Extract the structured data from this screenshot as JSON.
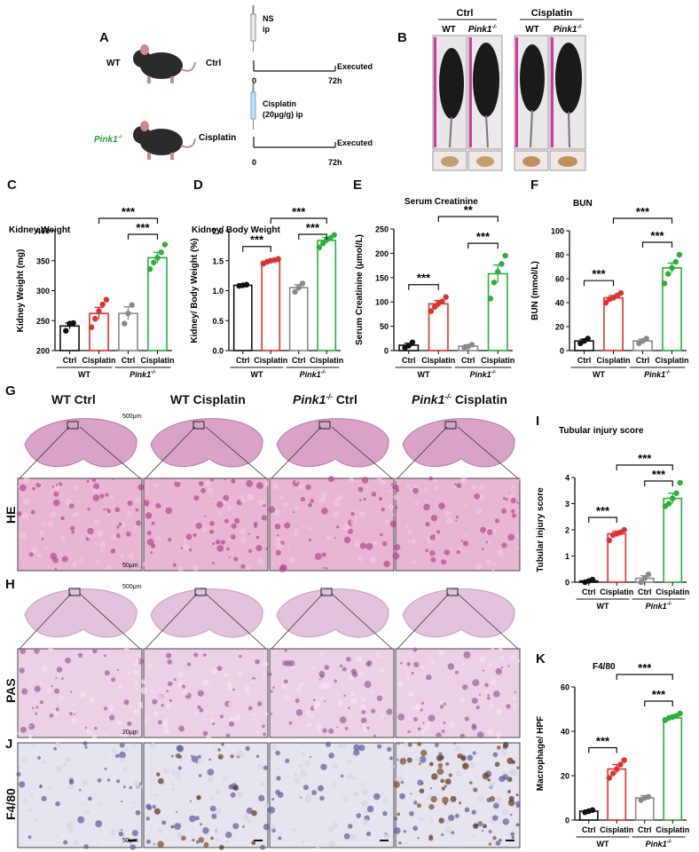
{
  "panels": {
    "A": "A",
    "B": "B",
    "C": "C",
    "D": "D",
    "E": "E",
    "F": "F",
    "G": "G",
    "H": "H",
    "I": "I",
    "J": "J",
    "K": "K"
  },
  "schematic": {
    "wt": "WT",
    "ko": "Pink1",
    "ko_sup": "-/-",
    "ctrl": "Ctrl",
    "cisplatin": "Cisplatin",
    "ns": "NS",
    "ip": "ip",
    "cis_drug": "Cisplatin",
    "cis_dose": "(20μg/g) ip",
    "executed": "Executed",
    "t0": "0",
    "t72": "72h"
  },
  "photos": {
    "ctrl": "Ctrl",
    "cisplatin": "Cisplatin",
    "wt": "WT",
    "ko": "Pink1",
    "ko_sup": "-/-"
  },
  "histology": {
    "headers": [
      {
        "pre": "WT Ctrl",
        "ko": false
      },
      {
        "pre": "WT Cisplatin",
        "ko": false
      },
      {
        "pre": "Ctrl",
        "ko": true
      },
      {
        "pre": "Cisplatin",
        "ko": true
      }
    ],
    "ko": "Pink1",
    "ko_sup": "-/-",
    "rows": {
      "he": "HE",
      "pas": "PAS",
      "f480": "F4/80"
    },
    "scale_500": "500μm",
    "scale_50": "50μm",
    "scale_20": "20μm"
  },
  "xgroups": {
    "ctrl": "Ctrl",
    "cis": "Cisplatin",
    "wt": "WT",
    "ko": "Pink1",
    "ko_sup": "-/-"
  },
  "colors": {
    "wt_ctrl": "#111111",
    "wt_cis": "#e03030",
    "ko_ctrl": "#8a8a8a",
    "ko_cis": "#2eae3c",
    "he": "#d9a3c8",
    "pas": "#e2c2dc",
    "ihc": "#e6e4ee"
  },
  "chart_data": [
    {
      "id": "C",
      "type": "bar",
      "title": "Kidney Weight",
      "ylabel": "Kidney Weight (mg)",
      "ylim": [
        200,
        400
      ],
      "yticks": [
        200,
        250,
        300,
        350,
        400
      ],
      "categories": [
        "WT Ctrl",
        "WT Cisplatin",
        "Pink1-/- Ctrl",
        "Pink1-/- Cisplatin"
      ],
      "values": [
        241,
        262,
        262,
        355
      ],
      "errors": [
        5,
        10,
        11,
        9
      ],
      "points": [
        [
          233,
          245,
          246
        ],
        [
          239,
          253,
          266,
          277,
          285
        ],
        [
          245,
          262,
          276
        ],
        [
          336,
          347,
          355,
          364,
          377
        ]
      ],
      "sig": [
        {
          "a": 2,
          "b": 3,
          "label": "***"
        },
        {
          "a": 1,
          "b": 3,
          "label": "***"
        }
      ]
    },
    {
      "id": "D",
      "type": "bar",
      "title": "Kidney/ Body Weight",
      "ylabel": "Kidney/ Body Weight (%)",
      "ylim": [
        0,
        2.0
      ],
      "yticks": [
        0.0,
        0.5,
        1.0,
        1.5,
        2.0
      ],
      "categories": [
        "WT Ctrl",
        "WT Cisplatin",
        "Pink1-/- Ctrl",
        "Pink1-/- Cisplatin"
      ],
      "values": [
        1.09,
        1.49,
        1.05,
        1.84
      ],
      "errors": [
        0.02,
        0.03,
        0.05,
        0.05
      ],
      "points": [
        [
          1.08,
          1.09,
          1.1
        ],
        [
          1.45,
          1.48,
          1.5,
          1.51,
          1.53
        ],
        [
          0.98,
          1.05,
          1.12
        ],
        [
          1.72,
          1.79,
          1.85,
          1.88,
          1.93
        ]
      ],
      "sig": [
        {
          "a": 0,
          "b": 1,
          "label": "***"
        },
        {
          "a": 2,
          "b": 3,
          "label": "***"
        },
        {
          "a": 1,
          "b": 3,
          "label": "***"
        }
      ]
    },
    {
      "id": "E",
      "type": "bar",
      "title": "Serum Creatinine",
      "ylabel": "Serum Creatinine (μmol/L)",
      "ylim": [
        0,
        250
      ],
      "yticks": [
        0,
        50,
        100,
        150,
        200,
        250
      ],
      "categories": [
        "WT Ctrl",
        "WT Cisplatin",
        "Pink1-/- Ctrl",
        "Pink1-/- Cisplatin"
      ],
      "values": [
        11,
        96,
        9,
        158
      ],
      "errors": [
        4,
        7,
        3,
        18
      ],
      "points": [
        [
          6,
          10,
          17
        ],
        [
          81,
          90,
          97,
          101,
          110
        ],
        [
          6,
          8,
          12
        ],
        [
          107,
          140,
          162,
          178,
          195
        ]
      ],
      "sig": [
        {
          "a": 0,
          "b": 1,
          "label": "***"
        },
        {
          "a": 2,
          "b": 3,
          "label": "***"
        },
        {
          "a": 1,
          "b": 3,
          "label": "**"
        }
      ]
    },
    {
      "id": "F",
      "type": "bar",
      "title": "BUN",
      "ylabel": "BUN (mmol/L)",
      "ylim": [
        0,
        100
      ],
      "yticks": [
        0,
        20,
        40,
        60,
        80,
        100
      ],
      "categories": [
        "WT Ctrl",
        "WT Cisplatin",
        "Pink1-/- Ctrl",
        "Pink1-/- Cisplatin"
      ],
      "values": [
        8,
        44,
        8,
        69
      ],
      "errors": [
        1.5,
        2,
        1.5,
        4
      ],
      "points": [
        [
          6,
          8,
          10
        ],
        [
          40,
          43,
          44,
          46,
          48
        ],
        [
          6,
          8,
          10
        ],
        [
          56,
          64,
          69,
          74,
          80
        ]
      ],
      "sig": [
        {
          "a": 0,
          "b": 1,
          "label": "***"
        },
        {
          "a": 2,
          "b": 3,
          "label": "***"
        },
        {
          "a": 1,
          "b": 3,
          "label": "***"
        }
      ]
    },
    {
      "id": "I",
      "type": "bar",
      "title": "Tubular injury score",
      "ylabel": "Tubular injury score",
      "ylim": [
        0,
        4
      ],
      "yticks": [
        0,
        1,
        2,
        3,
        4
      ],
      "categories": [
        "WT Ctrl",
        "WT Cisplatin",
        "Pink1-/- Ctrl",
        "Pink1-/- Cisplatin"
      ],
      "values": [
        0.05,
        1.85,
        0.15,
        3.2
      ],
      "errors": [
        0.03,
        0.1,
        0.1,
        0.2
      ],
      "points": [
        [
          0.0,
          0.05,
          0.1
        ],
        [
          1.6,
          1.8,
          1.85,
          1.9,
          2.0
        ],
        [
          0.0,
          0.15,
          0.3
        ],
        [
          2.9,
          3.0,
          3.2,
          3.4,
          3.8
        ]
      ],
      "sig": [
        {
          "a": 0,
          "b": 1,
          "label": "***"
        },
        {
          "a": 2,
          "b": 3,
          "label": "***"
        },
        {
          "a": 1,
          "b": 3,
          "label": "***"
        }
      ]
    },
    {
      "id": "K",
      "type": "bar",
      "title": "F4/80",
      "ylabel": "Macrophage/ HPF",
      "ylim": [
        0,
        60
      ],
      "yticks": [
        0,
        20,
        40,
        60
      ],
      "categories": [
        "WT Ctrl",
        "WT Cisplatin",
        "Pink1-/- Ctrl",
        "Pink1-/- Cisplatin"
      ],
      "values": [
        4,
        23,
        10,
        46
      ],
      "errors": [
        0.5,
        2,
        1,
        1
      ],
      "points": [
        [
          3.5,
          4,
          4.5
        ],
        [
          19,
          21,
          23,
          25,
          27
        ],
        [
          9,
          10,
          10.5
        ],
        [
          45,
          46,
          46.5,
          47,
          48
        ]
      ],
      "sig": [
        {
          "a": 0,
          "b": 1,
          "label": "***"
        },
        {
          "a": 2,
          "b": 3,
          "label": "***"
        },
        {
          "a": 1,
          "b": 3,
          "label": "***"
        }
      ]
    }
  ]
}
